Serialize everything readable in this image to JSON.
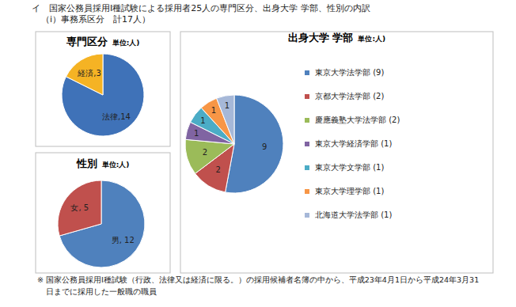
{
  "header": {
    "lines": [
      "イ　国家公務員採用Ⅰ種試験による採用者25人の専門区分、出身大学 学部、性別の内訳",
      "（ⅰ）事務系区分　計17人）"
    ]
  },
  "chart_data": [
    {
      "type": "pie",
      "title": "専門区分",
      "subtitle": "単位:人)",
      "categories": [
        "法律",
        "経済"
      ],
      "values": [
        14,
        3
      ],
      "colors": [
        "#3f72b8",
        "#f5b324"
      ],
      "data_labels": true,
      "value_labels": [
        "法律,14",
        "経済,3"
      ]
    },
    {
      "type": "pie",
      "title": "性別",
      "subtitle": "単位:人)",
      "categories": [
        "男",
        "女"
      ],
      "values": [
        12,
        5
      ],
      "colors": [
        "#4f81bd",
        "#c0504d"
      ],
      "data_labels": true,
      "value_labels": [
        "男, 12",
        "女, 5"
      ]
    },
    {
      "type": "pie",
      "title": "出身大学 学部",
      "subtitle": "単位:人)",
      "categories": [
        "東京大学法学部 (9)",
        "京都大学法学部 (2)",
        "慶應義塾大学法学部 (2)",
        "東京大学経済学部 (1)",
        "東京大学文学部 (1)",
        "東京大学理学部 (1)",
        "北海道大学法学部 (1)"
      ],
      "values": [
        9,
        2,
        2,
        1,
        1,
        1,
        1
      ],
      "colors": [
        "#4f81bd",
        "#c0504d",
        "#9bbb59",
        "#8064a2",
        "#4bacc6",
        "#f79646",
        "#a6b8d8"
      ],
      "data_labels": true,
      "legend": "right"
    }
  ],
  "note": [
    "※ 国家公務員採用Ⅰ種試験（行政、法律又は経済に限る。）の採用候補者名簿の中から、平成23年4月1日から平成24年3月31",
    "日までに採用した一般職の職員"
  ]
}
